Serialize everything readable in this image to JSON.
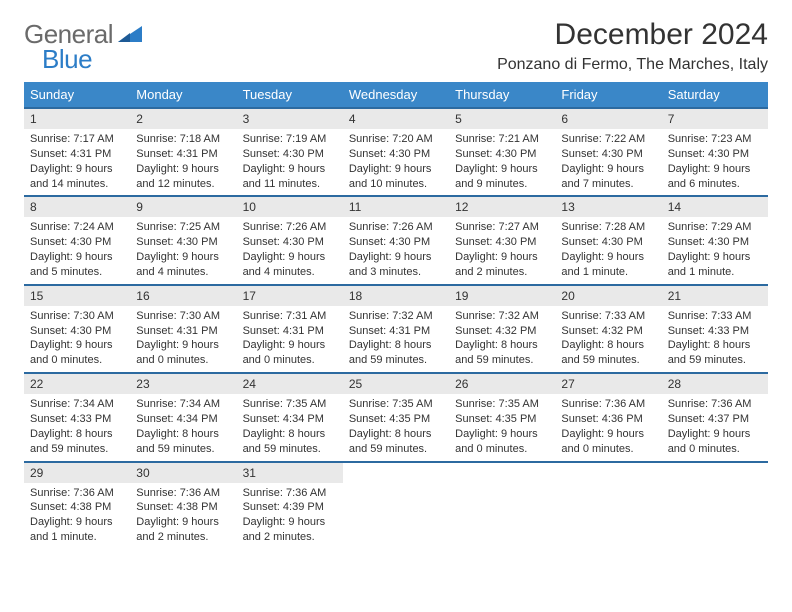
{
  "logo": {
    "word1": "General",
    "word2": "Blue"
  },
  "title": "December 2024",
  "location": "Ponzano di Fermo, The Marches, Italy",
  "colors": {
    "header_bg": "#3a87c8",
    "header_text": "#ffffff",
    "row_divider": "#2c6aa0",
    "daynum_bg": "#e9e9e9",
    "logo_gray": "#6a6a6a",
    "logo_blue": "#2c7dc7",
    "body_text": "#333333"
  },
  "weekdays": [
    "Sunday",
    "Monday",
    "Tuesday",
    "Wednesday",
    "Thursday",
    "Friday",
    "Saturday"
  ],
  "weeks": [
    [
      {
        "num": "1",
        "sunrise": "7:17 AM",
        "sunset": "4:31 PM",
        "daylight": "9 hours and 14 minutes."
      },
      {
        "num": "2",
        "sunrise": "7:18 AM",
        "sunset": "4:31 PM",
        "daylight": "9 hours and 12 minutes."
      },
      {
        "num": "3",
        "sunrise": "7:19 AM",
        "sunset": "4:30 PM",
        "daylight": "9 hours and 11 minutes."
      },
      {
        "num": "4",
        "sunrise": "7:20 AM",
        "sunset": "4:30 PM",
        "daylight": "9 hours and 10 minutes."
      },
      {
        "num": "5",
        "sunrise": "7:21 AM",
        "sunset": "4:30 PM",
        "daylight": "9 hours and 9 minutes."
      },
      {
        "num": "6",
        "sunrise": "7:22 AM",
        "sunset": "4:30 PM",
        "daylight": "9 hours and 7 minutes."
      },
      {
        "num": "7",
        "sunrise": "7:23 AM",
        "sunset": "4:30 PM",
        "daylight": "9 hours and 6 minutes."
      }
    ],
    [
      {
        "num": "8",
        "sunrise": "7:24 AM",
        "sunset": "4:30 PM",
        "daylight": "9 hours and 5 minutes."
      },
      {
        "num": "9",
        "sunrise": "7:25 AM",
        "sunset": "4:30 PM",
        "daylight": "9 hours and 4 minutes."
      },
      {
        "num": "10",
        "sunrise": "7:26 AM",
        "sunset": "4:30 PM",
        "daylight": "9 hours and 4 minutes."
      },
      {
        "num": "11",
        "sunrise": "7:26 AM",
        "sunset": "4:30 PM",
        "daylight": "9 hours and 3 minutes."
      },
      {
        "num": "12",
        "sunrise": "7:27 AM",
        "sunset": "4:30 PM",
        "daylight": "9 hours and 2 minutes."
      },
      {
        "num": "13",
        "sunrise": "7:28 AM",
        "sunset": "4:30 PM",
        "daylight": "9 hours and 1 minute."
      },
      {
        "num": "14",
        "sunrise": "7:29 AM",
        "sunset": "4:30 PM",
        "daylight": "9 hours and 1 minute."
      }
    ],
    [
      {
        "num": "15",
        "sunrise": "7:30 AM",
        "sunset": "4:30 PM",
        "daylight": "9 hours and 0 minutes."
      },
      {
        "num": "16",
        "sunrise": "7:30 AM",
        "sunset": "4:31 PM",
        "daylight": "9 hours and 0 minutes."
      },
      {
        "num": "17",
        "sunrise": "7:31 AM",
        "sunset": "4:31 PM",
        "daylight": "9 hours and 0 minutes."
      },
      {
        "num": "18",
        "sunrise": "7:32 AM",
        "sunset": "4:31 PM",
        "daylight": "8 hours and 59 minutes."
      },
      {
        "num": "19",
        "sunrise": "7:32 AM",
        "sunset": "4:32 PM",
        "daylight": "8 hours and 59 minutes."
      },
      {
        "num": "20",
        "sunrise": "7:33 AM",
        "sunset": "4:32 PM",
        "daylight": "8 hours and 59 minutes."
      },
      {
        "num": "21",
        "sunrise": "7:33 AM",
        "sunset": "4:33 PM",
        "daylight": "8 hours and 59 minutes."
      }
    ],
    [
      {
        "num": "22",
        "sunrise": "7:34 AM",
        "sunset": "4:33 PM",
        "daylight": "8 hours and 59 minutes."
      },
      {
        "num": "23",
        "sunrise": "7:34 AM",
        "sunset": "4:34 PM",
        "daylight": "8 hours and 59 minutes."
      },
      {
        "num": "24",
        "sunrise": "7:35 AM",
        "sunset": "4:34 PM",
        "daylight": "8 hours and 59 minutes."
      },
      {
        "num": "25",
        "sunrise": "7:35 AM",
        "sunset": "4:35 PM",
        "daylight": "8 hours and 59 minutes."
      },
      {
        "num": "26",
        "sunrise": "7:35 AM",
        "sunset": "4:35 PM",
        "daylight": "9 hours and 0 minutes."
      },
      {
        "num": "27",
        "sunrise": "7:36 AM",
        "sunset": "4:36 PM",
        "daylight": "9 hours and 0 minutes."
      },
      {
        "num": "28",
        "sunrise": "7:36 AM",
        "sunset": "4:37 PM",
        "daylight": "9 hours and 0 minutes."
      }
    ],
    [
      {
        "num": "29",
        "sunrise": "7:36 AM",
        "sunset": "4:38 PM",
        "daylight": "9 hours and 1 minute."
      },
      {
        "num": "30",
        "sunrise": "7:36 AM",
        "sunset": "4:38 PM",
        "daylight": "9 hours and 2 minutes."
      },
      {
        "num": "31",
        "sunrise": "7:36 AM",
        "sunset": "4:39 PM",
        "daylight": "9 hours and 2 minutes."
      },
      null,
      null,
      null,
      null
    ]
  ],
  "labels": {
    "sunrise": "Sunrise:",
    "sunset": "Sunset:",
    "daylight": "Daylight:"
  }
}
